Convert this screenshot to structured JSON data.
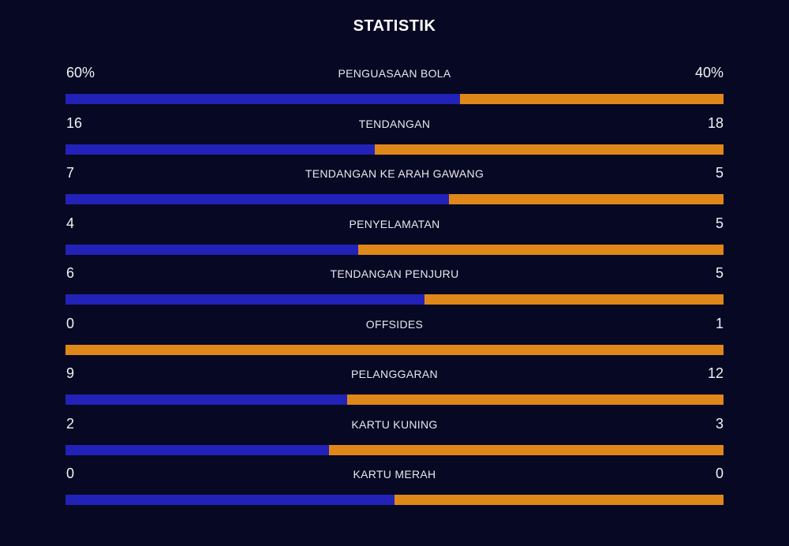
{
  "header": {
    "title": "STATISTIK"
  },
  "colors": {
    "background": "#070823",
    "home": "#2222b8",
    "away": "#e0871a"
  },
  "stats": [
    {
      "label": "PENGUASAAN BOLA",
      "home": "60%",
      "away": "40%",
      "home_share": 0.6
    },
    {
      "label": "TENDANGAN",
      "home": "16",
      "away": "18",
      "home_share": 0.4706
    },
    {
      "label": "TENDANGAN KE ARAH GAWANG",
      "home": "7",
      "away": "5",
      "home_share": 0.5833
    },
    {
      "label": "PENYELAMATAN",
      "home": "4",
      "away": "5",
      "home_share": 0.4444
    },
    {
      "label": "TENDANGAN PENJURU",
      "home": "6",
      "away": "5",
      "home_share": 0.5455
    },
    {
      "label": "OFFSIDES",
      "home": "0",
      "away": "1",
      "home_share": 0
    },
    {
      "label": "PELANGGARAN",
      "home": "9",
      "away": "12",
      "home_share": 0.4286
    },
    {
      "label": "KARTU KUNING",
      "home": "2",
      "away": "3",
      "home_share": 0.4
    },
    {
      "label": "KARTU MERAH",
      "home": "0",
      "away": "0",
      "home_share": 0.5
    }
  ]
}
